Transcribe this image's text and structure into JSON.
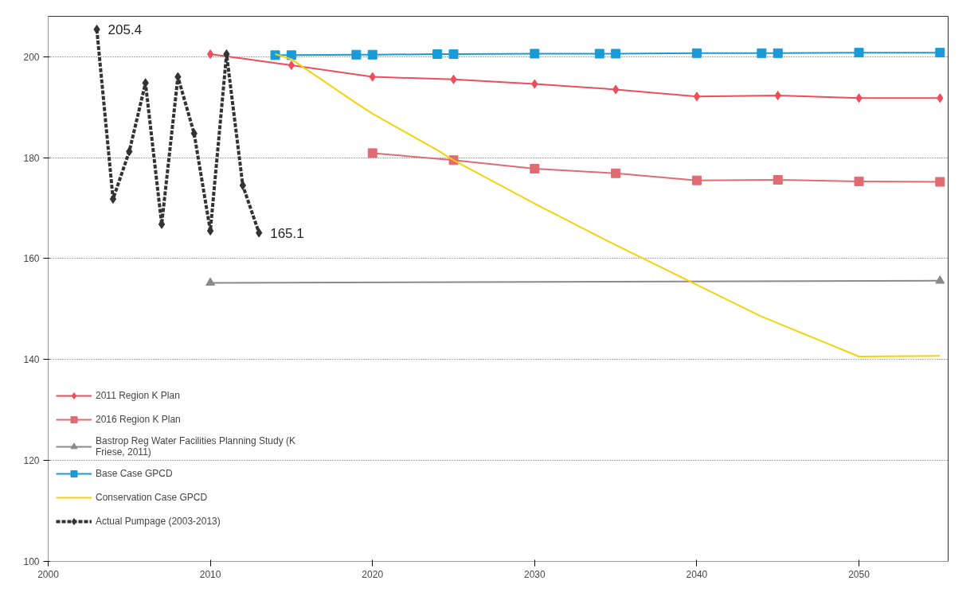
{
  "chart_data": {
    "type": "line",
    "xlim": [
      2000,
      2055.5
    ],
    "xticks": [
      2000,
      2010,
      2020,
      2030,
      2040,
      2050
    ],
    "ylim": [
      100,
      208
    ],
    "yticks": [
      100,
      120,
      140,
      160,
      180,
      200
    ],
    "grid": "y",
    "legend": "left",
    "annotations": [
      {
        "text": "205.4",
        "x": 2003,
        "y": 205.4
      },
      {
        "text": "165.1",
        "x": 2013,
        "y": 165.1
      }
    ],
    "series": [
      {
        "name": "2011 Region K Plan",
        "color": "#f04d5a",
        "marker": "diamond",
        "x": [
          2010,
          2015,
          2020,
          2025,
          2030,
          2035,
          2040,
          2045,
          2050,
          2055
        ],
        "values": [
          200.5,
          198.3,
          196,
          195.5,
          194.6,
          193.5,
          192.1,
          192.3,
          191.8,
          191.8
        ]
      },
      {
        "name": "2016 Region K Plan",
        "color": "#e06b72",
        "marker": "square",
        "x": [
          2020,
          2025,
          2030,
          2035,
          2040,
          2045,
          2050,
          2055
        ],
        "values": [
          180.9,
          179.5,
          177.8,
          176.9,
          175.5,
          175.6,
          175.3,
          175.2
        ]
      },
      {
        "name": "Bastrop Reg Water Facilities Planning Study (K Friese, 2011)",
        "color": "#8a8a8a",
        "marker": "triangle",
        "x": [
          2010,
          2055
        ],
        "values": [
          155.2,
          155.6
        ]
      },
      {
        "name": "Base Case GPCD",
        "color": "#1a9ad6",
        "marker": "square",
        "x": [
          2014,
          2015,
          2019,
          2020,
          2024,
          2025,
          2030,
          2034,
          2035,
          2040,
          2044,
          2045,
          2050,
          2055
        ],
        "values": [
          200.3,
          200.3,
          200.4,
          200.4,
          200.5,
          200.5,
          200.6,
          200.6,
          200.6,
          200.7,
          200.7,
          200.7,
          200.8,
          200.8
        ]
      },
      {
        "name": "Conservation Case GPCD",
        "color": "#f5d20a",
        "marker": "none",
        "x": [
          2014,
          2015,
          2019,
          2020,
          2024,
          2025,
          2030,
          2034,
          2035,
          2040,
          2044,
          2045,
          2050,
          2055
        ],
        "values": [
          200.5,
          199.5,
          190.8,
          188.7,
          181.5,
          179.5,
          170.9,
          164.3,
          162.7,
          154.8,
          148.5,
          147.2,
          140.6,
          140.7
        ]
      },
      {
        "name": "Actual Pumpage (2003-2013)",
        "color": "#333333",
        "marker": "diamond",
        "line_style": "dashed",
        "x": [
          2003,
          2004,
          2005,
          2006,
          2007,
          2008,
          2009,
          2010,
          2011,
          2012,
          2013
        ],
        "values": [
          205.4,
          171.8,
          181.2,
          194.8,
          166.8,
          196,
          184.8,
          165.5,
          200.5,
          174.5,
          165.1
        ]
      }
    ]
  }
}
